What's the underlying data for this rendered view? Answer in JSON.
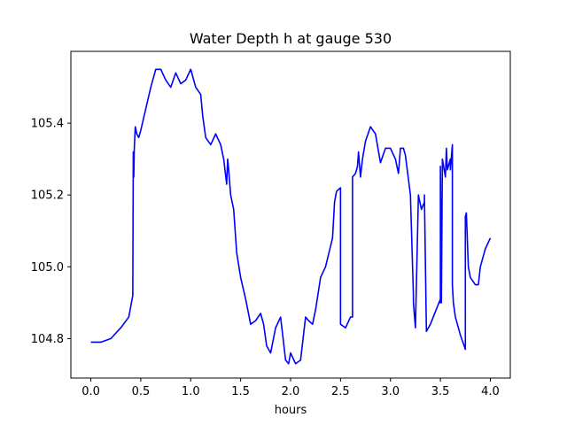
{
  "chart_data": {
    "type": "line",
    "title": "Water Depth h at gauge 530",
    "xlabel": "hours",
    "ylabel": "",
    "xlim": [
      -0.2,
      4.2
    ],
    "ylim": [
      104.69,
      105.6
    ],
    "xticks": [
      0.0,
      0.5,
      1.0,
      1.5,
      2.0,
      2.5,
      3.0,
      3.5,
      4.0
    ],
    "xtick_labels": [
      "0.0",
      "0.5",
      "1.0",
      "1.5",
      "2.0",
      "2.5",
      "3.0",
      "3.5",
      "4.0"
    ],
    "yticks": [
      104.8,
      105.0,
      105.2,
      105.4
    ],
    "ytick_labels": [
      "104.8",
      "105.0",
      "105.2",
      "105.4"
    ],
    "grid": false,
    "legend": "none",
    "series": [
      {
        "color": "#0000ff",
        "x": [
          0.0,
          0.1,
          0.2,
          0.3,
          0.38,
          0.42,
          0.425,
          0.43,
          0.435,
          0.44,
          0.445,
          0.46,
          0.48,
          0.5,
          0.55,
          0.6,
          0.65,
          0.7,
          0.75,
          0.8,
          0.85,
          0.9,
          0.95,
          1.0,
          1.02,
          1.05,
          1.1,
          1.12,
          1.15,
          1.2,
          1.25,
          1.3,
          1.33,
          1.36,
          1.37,
          1.38,
          1.4,
          1.43,
          1.45,
          1.46,
          1.5,
          1.55,
          1.6,
          1.65,
          1.7,
          1.73,
          1.76,
          1.8,
          1.85,
          1.9,
          1.95,
          1.98,
          2.0,
          2.05,
          2.1,
          2.15,
          2.18,
          2.22,
          2.25,
          2.3,
          2.35,
          2.42,
          2.44,
          2.46,
          2.5,
          2.5,
          2.55,
          2.6,
          2.62,
          2.62,
          2.65,
          2.67,
          2.68,
          2.7,
          2.72,
          2.75,
          2.8,
          2.85,
          2.9,
          2.95,
          3.0,
          3.05,
          3.08,
          3.1,
          3.13,
          3.15,
          3.2,
          3.23,
          3.23,
          3.25,
          3.28,
          3.31,
          3.34,
          3.34,
          3.36,
          3.4,
          3.5,
          3.5,
          3.5,
          3.51,
          3.52,
          3.55,
          3.56,
          3.57,
          3.58,
          3.6,
          3.6,
          3.62,
          3.62,
          3.63,
          3.65,
          3.7,
          3.75,
          3.75,
          3.76,
          3.78,
          3.8,
          3.85,
          3.88,
          3.9,
          3.95,
          4.0
        ],
        "y": [
          104.79,
          104.79,
          104.8,
          104.83,
          104.86,
          104.92,
          105.32,
          105.25,
          105.33,
          105.36,
          105.39,
          105.37,
          105.36,
          105.38,
          105.44,
          105.5,
          105.55,
          105.55,
          105.52,
          105.5,
          105.54,
          105.51,
          105.52,
          105.55,
          105.53,
          105.5,
          105.48,
          105.42,
          105.36,
          105.34,
          105.37,
          105.34,
          105.3,
          105.23,
          105.3,
          105.27,
          105.2,
          105.16,
          105.08,
          105.04,
          104.97,
          104.91,
          104.84,
          104.85,
          104.87,
          104.84,
          104.78,
          104.76,
          104.83,
          104.86,
          104.74,
          104.73,
          104.76,
          104.73,
          104.74,
          104.86,
          104.85,
          104.84,
          104.88,
          104.97,
          105.0,
          105.08,
          105.18,
          105.21,
          105.22,
          104.84,
          104.83,
          104.86,
          104.86,
          105.25,
          105.26,
          105.28,
          105.32,
          105.25,
          105.3,
          105.35,
          105.39,
          105.37,
          105.29,
          105.33,
          105.33,
          105.3,
          105.26,
          105.33,
          105.33,
          105.31,
          105.2,
          104.92,
          104.9,
          104.83,
          105.2,
          105.16,
          105.18,
          105.2,
          104.82,
          104.84,
          104.91,
          104.9,
          105.28,
          104.9,
          105.3,
          105.25,
          105.33,
          105.27,
          105.28,
          105.3,
          105.27,
          105.34,
          104.95,
          104.9,
          104.86,
          104.81,
          104.77,
          105.14,
          105.15,
          105.0,
          104.97,
          104.95,
          104.95,
          105.0,
          105.05,
          105.08
        ]
      }
    ]
  }
}
